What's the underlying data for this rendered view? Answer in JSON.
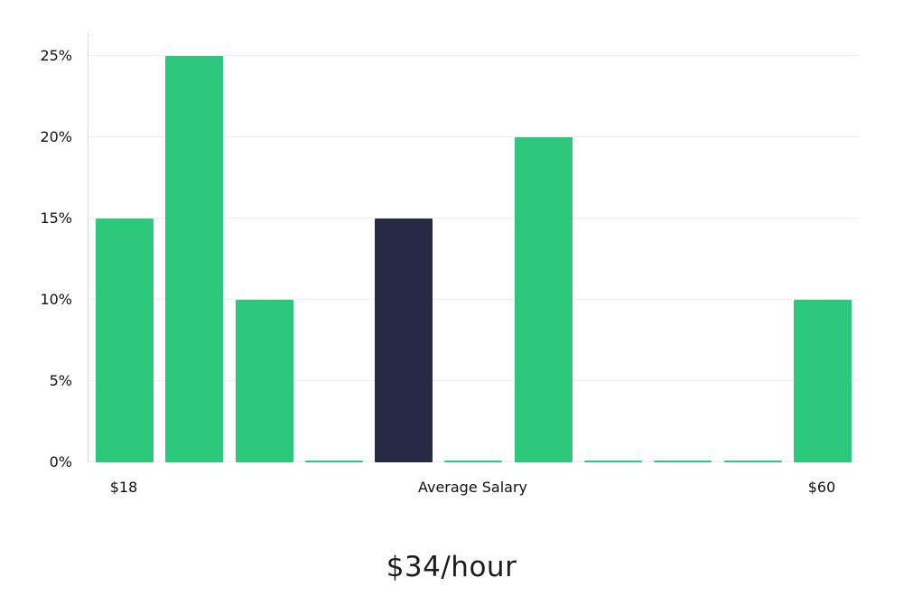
{
  "chart_data": {
    "type": "bar",
    "title": "$34/hour",
    "xlabels": {
      "left": "$18",
      "center": "Average Salary",
      "right": "$60"
    },
    "yticks": [
      0,
      5,
      10,
      15,
      20,
      25
    ],
    "ytick_labels": [
      "0%",
      "5%",
      "10%",
      "15%",
      "20%",
      "25%"
    ],
    "ylim": [
      0,
      26.3
    ],
    "values": [
      15,
      25,
      10,
      0.1,
      15,
      0.1,
      20,
      0.1,
      0.1,
      0.1,
      10
    ],
    "highlight_index": 4,
    "highlight_meaning": "Average Salary bar",
    "colors": {
      "bar": "#2cc97d",
      "highlight": "#262a45",
      "grid": "#ececec",
      "axis": "#d9d9d9",
      "text": "#111111"
    },
    "grid": "horizontal",
    "legend": "none"
  }
}
